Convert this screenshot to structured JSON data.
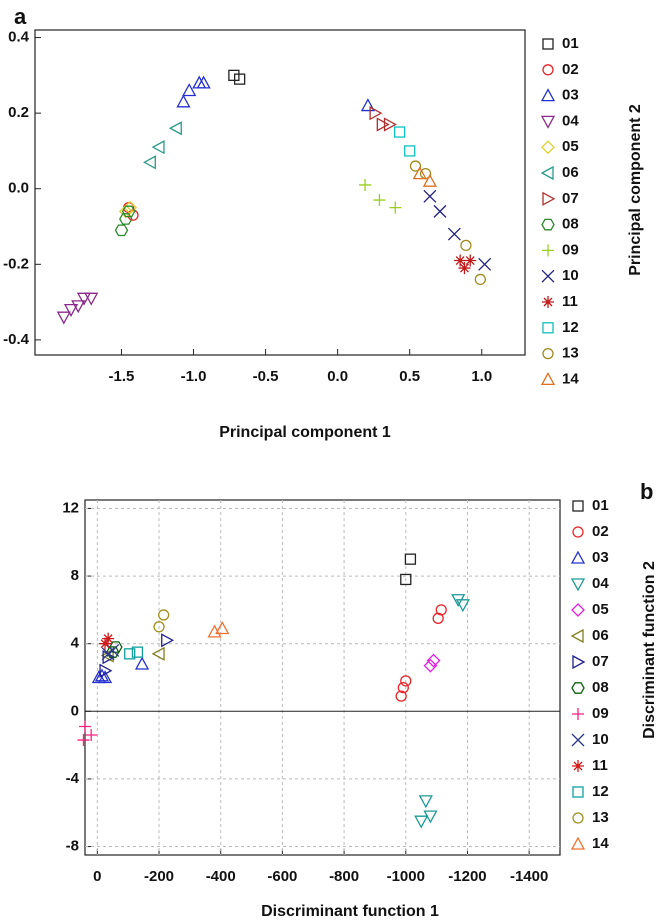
{
  "chart_data": [
    {
      "type": "scatter",
      "panel_label": "a",
      "x_label": "Principal component 1",
      "y_label": "Principal component 2",
      "xlim": [
        -2.1,
        1.3
      ],
      "ylim": [
        -0.44,
        0.42
      ],
      "xticks": [
        -1.5,
        {
          "value": -1,
          "label": "-1.0"
        },
        -0.5,
        {
          "value": 0,
          "label": "0.0"
        },
        0.5,
        {
          "value": 1,
          "label": "1.0"
        }
      ],
      "yticks": [
        -0.4,
        -0.2,
        {
          "value": 0,
          "label": "0.0"
        },
        0.2,
        0.4
      ],
      "grid": false,
      "series": [
        {
          "name": "01",
          "color": "#222222",
          "marker": "square",
          "x": [
            -0.72,
            -0.68
          ],
          "values": [
            0.3,
            0.29
          ]
        },
        {
          "name": "02",
          "color": "#e8262a",
          "marker": "circle",
          "x": [
            -1.45,
            -1.42
          ],
          "values": [
            -0.05,
            -0.07
          ]
        },
        {
          "name": "03",
          "color": "#2430d0",
          "marker": "triangle-up",
          "x": [
            -1.07,
            -1.03,
            -0.96,
            -0.93,
            0.21
          ],
          "values": [
            0.23,
            0.26,
            0.28,
            0.28,
            0.22
          ]
        },
        {
          "name": "04",
          "color": "#8b2a8b",
          "marker": "triangle-down",
          "x": [
            -1.9,
            -1.85,
            -1.8,
            -1.76,
            -1.71
          ],
          "values": [
            -0.34,
            -0.32,
            -0.31,
            -0.29,
            -0.29
          ]
        },
        {
          "name": "05",
          "color": "#e0d030",
          "marker": "diamond",
          "x": [
            -1.47,
            -1.44
          ],
          "values": [
            -0.06,
            -0.05
          ]
        },
        {
          "name": "06",
          "color": "#2a9a8a",
          "marker": "triangle-left",
          "x": [
            -1.3,
            -1.24,
            -1.12
          ],
          "values": [
            0.07,
            0.11,
            0.16
          ]
        },
        {
          "name": "07",
          "color": "#b03030",
          "marker": "triangle-right",
          "x": [
            0.26,
            0.31,
            0.36
          ],
          "values": [
            0.2,
            0.17,
            0.17
          ]
        },
        {
          "name": "08",
          "color": "#2a8a2a",
          "marker": "hexagon",
          "x": [
            -1.5,
            -1.47,
            -1.45
          ],
          "values": [
            -0.11,
            -0.08,
            -0.06
          ]
        },
        {
          "name": "09",
          "color": "#9ad020",
          "marker": "plus",
          "x": [
            0.19,
            0.29,
            0.4
          ],
          "values": [
            0.01,
            -0.03,
            -0.05
          ]
        },
        {
          "name": "10",
          "color": "#202080",
          "marker": "x",
          "x": [
            0.64,
            0.71,
            0.81,
            1.02
          ],
          "values": [
            -0.02,
            -0.06,
            -0.12,
            -0.2
          ]
        },
        {
          "name": "11",
          "color": "#c01818",
          "marker": "star",
          "x": [
            0.85,
            0.88,
            0.92
          ],
          "values": [
            -0.19,
            -0.21,
            -0.19
          ]
        },
        {
          "name": "12",
          "color": "#10c0c0",
          "marker": "square",
          "x": [
            0.43,
            0.5
          ],
          "values": [
            0.15,
            0.1
          ]
        },
        {
          "name": "13",
          "color": "#a08a20",
          "marker": "circle",
          "x": [
            0.54,
            0.61,
            0.89,
            0.99
          ],
          "values": [
            0.06,
            0.04,
            -0.15,
            -0.24
          ]
        },
        {
          "name": "14",
          "color": "#e07020",
          "marker": "triangle-up",
          "x": [
            0.57,
            0.64
          ],
          "values": [
            0.04,
            0.02
          ]
        }
      ]
    },
    {
      "type": "scatter",
      "panel_label": "b",
      "x_label": "Discriminant function 1",
      "y_label": "Discriminant function 2",
      "xlim": [
        40,
        -1500
      ],
      "ylim": [
        -8.5,
        12.5
      ],
      "xticks": [
        0,
        -200,
        -400,
        -600,
        -800,
        -1000,
        -1200,
        -1400
      ],
      "yticks": [
        -8,
        -4,
        0,
        4,
        8,
        12
      ],
      "grid": true,
      "series": [
        {
          "name": "01",
          "color": "#222222",
          "marker": "square",
          "x": [
            -1000,
            -1015
          ],
          "values": [
            7.8,
            9
          ]
        },
        {
          "name": "02",
          "color": "#e8262a",
          "marker": "circle",
          "x": [
            -985,
            -992,
            -1000,
            -1105,
            -1115
          ],
          "values": [
            0.9,
            1.4,
            1.8,
            5.5,
            6
          ]
        },
        {
          "name": "03",
          "color": "#2430d0",
          "marker": "triangle-up",
          "x": [
            -5,
            -15,
            -25,
            -145
          ],
          "values": [
            2,
            2.1,
            2,
            2.8
          ]
        },
        {
          "name": "04",
          "color": "#1e9a96",
          "marker": "triangle-down",
          "x": [
            -1050,
            -1065,
            -1080,
            -1170,
            -1185
          ],
          "values": [
            -6.5,
            -5.3,
            -6.2,
            6.6,
            6.3
          ]
        },
        {
          "name": "05",
          "color": "#e020e0",
          "marker": "diamond",
          "x": [
            -1080,
            -1090
          ],
          "values": [
            2.7,
            3
          ]
        },
        {
          "name": "06",
          "color": "#808020",
          "marker": "triangle-left",
          "x": [
            -35,
            -200
          ],
          "values": [
            3.3,
            3.4
          ]
        },
        {
          "name": "07",
          "color": "#202090",
          "marker": "triangle-right",
          "x": [
            -25,
            -35,
            -225
          ],
          "values": [
            2.4,
            3.2,
            4.2
          ]
        },
        {
          "name": "08",
          "color": "#106010",
          "marker": "hexagon",
          "x": [
            -50,
            -60
          ],
          "values": [
            3.5,
            3.8
          ]
        },
        {
          "name": "09",
          "color": "#ff2080",
          "marker": "plus",
          "x": [
            45,
            40,
            20
          ],
          "values": [
            -1.7,
            -0.9,
            -1.4
          ]
        },
        {
          "name": "10",
          "color": "#2a3a8a",
          "marker": "x",
          "x": [
            -35,
            -50
          ],
          "values": [
            3.4,
            3.6
          ]
        },
        {
          "name": "11",
          "color": "#d01818",
          "marker": "star",
          "x": [
            -25,
            -35
          ],
          "values": [
            4,
            4.3
          ]
        },
        {
          "name": "12",
          "color": "#10a0a0",
          "marker": "square",
          "x": [
            -105,
            -130
          ],
          "values": [
            3.4,
            3.5
          ]
        },
        {
          "name": "13",
          "color": "#a09020",
          "marker": "circle",
          "x": [
            -200,
            -215
          ],
          "values": [
            5,
            5.7
          ]
        },
        {
          "name": "14",
          "color": "#f07030",
          "marker": "triangle-up",
          "x": [
            -380,
            -405
          ],
          "values": [
            4.7,
            4.9
          ]
        }
      ]
    }
  ]
}
